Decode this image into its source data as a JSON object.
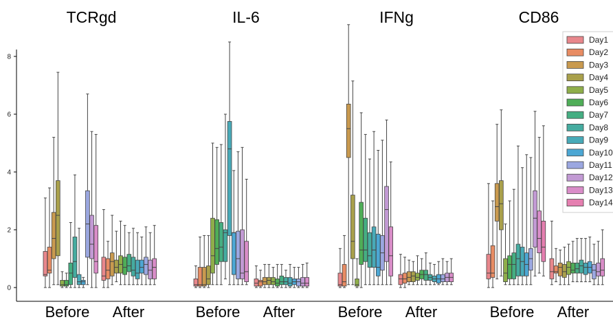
{
  "chart_data": {
    "type": "box",
    "panels": [
      "TCRgd",
      "IL-6",
      "IFNg",
      "CD86"
    ],
    "groups": [
      "Before",
      "After"
    ],
    "y_ticks": [
      0,
      2,
      4,
      6,
      8
    ],
    "ylim": [
      -0.3,
      8.5
    ],
    "legend": {
      "placement": "right",
      "entries": [
        "Day1",
        "Day2",
        "Day3",
        "Day4",
        "Day5",
        "Day6",
        "Day7",
        "Day8",
        "Day9",
        "Day10",
        "Day11",
        "Day12",
        "Day13",
        "Day14"
      ]
    },
    "colors": [
      "#e8878c",
      "#e88c63",
      "#c99a4f",
      "#a9a04b",
      "#8fae4a",
      "#4fae58",
      "#45ae82",
      "#45aca0",
      "#48aab8",
      "#4ca7d4",
      "#9ba7e0",
      "#c29ad4",
      "#d98dc8",
      "#e57fb0"
    ],
    "boxes": [
      {
        "panel": "TCRgd",
        "group": "Before",
        "stats": [
          [
            0,
            0.4,
            0.45,
            1.25,
            3.1
          ],
          [
            0,
            0.5,
            0.6,
            1.4,
            3.45
          ],
          [
            0.1,
            1.0,
            1.7,
            2.6,
            5.2
          ],
          [
            0.1,
            1.1,
            2.5,
            3.7,
            7.45
          ],
          [
            0,
            0.05,
            0.1,
            0.25,
            0.55
          ],
          [
            0,
            0.05,
            0.1,
            0.25,
            0.5
          ],
          [
            0,
            0.1,
            0.5,
            0.85,
            2.25
          ],
          [
            0,
            0.35,
            0.9,
            1.75,
            3.9
          ],
          [
            0,
            0.1,
            0.2,
            0.45,
            2.05
          ],
          [
            0,
            0.1,
            0.2,
            0.25,
            0.35
          ],
          [
            0.1,
            1.05,
            2.2,
            3.35,
            6.7
          ],
          [
            0,
            1.0,
            1.5,
            2.5,
            5.4
          ],
          [
            0,
            0.5,
            0.9,
            2.15,
            5.3
          ],
          [
            0,
            0,
            0,
            0,
            0
          ]
        ]
      },
      {
        "panel": "TCRgd",
        "group": "After",
        "stats": [
          [
            0,
            0.25,
            0.4,
            1.05,
            2.7
          ],
          [
            0,
            0.3,
            0.6,
            1.0,
            1.6
          ],
          [
            0.1,
            0.4,
            0.9,
            1.2,
            2.5
          ],
          [
            0.2,
            0.5,
            0.7,
            0.95,
            1.95
          ],
          [
            0.1,
            0.5,
            0.8,
            1.1,
            2.3
          ],
          [
            0.1,
            0.45,
            0.7,
            1.05,
            2.15
          ],
          [
            0.1,
            0.55,
            0.75,
            1.15,
            1.9
          ],
          [
            0.1,
            0.4,
            0.6,
            1.05,
            2.05
          ],
          [
            0.1,
            0.3,
            0.5,
            0.95,
            1.9
          ],
          [
            0.1,
            0.5,
            0.7,
            0.95,
            1.75
          ],
          [
            0.1,
            0.45,
            0.8,
            1.05,
            2.1
          ],
          [
            0.1,
            0.3,
            0.6,
            0.95,
            1.9
          ],
          [
            0.1,
            0.3,
            0.7,
            1.0,
            2.15
          ],
          [
            0,
            0,
            0,
            0,
            0
          ]
        ]
      },
      {
        "panel": "IL-6",
        "group": "Before",
        "stats": [
          [
            0,
            0.05,
            0.1,
            0.3,
            0.75
          ],
          [
            0,
            0.05,
            0.1,
            0.7,
            1.75
          ],
          [
            0,
            0.05,
            0.1,
            0.7,
            1.8
          ],
          [
            0,
            0.1,
            0.3,
            0.75,
            1.8
          ],
          [
            0.1,
            0.5,
            1.1,
            2.4,
            5.0
          ],
          [
            0.1,
            0.8,
            1.35,
            2.35,
            4.85
          ],
          [
            0.1,
            0.9,
            1.4,
            2.25,
            4.95
          ],
          [
            0.3,
            0.9,
            1.9,
            2.0,
            6.0
          ],
          [
            0.1,
            1.8,
            4.8,
            5.75,
            8.5
          ],
          [
            0.1,
            0.45,
            1.9,
            1.9,
            4.05
          ],
          [
            0.1,
            0.3,
            1.0,
            1.95,
            4.7
          ],
          [
            0.1,
            0.3,
            0.5,
            2.0,
            4.85
          ],
          [
            0.1,
            0.2,
            0.55,
            1.6,
            3.75
          ],
          [
            0,
            0,
            0,
            0,
            0
          ]
        ]
      },
      {
        "panel": "IL-6",
        "group": "After",
        "stats": [
          [
            0,
            0.05,
            0.15,
            0.3,
            0.75
          ],
          [
            0,
            0.05,
            0.2,
            0.25,
            0.6
          ],
          [
            0,
            0.1,
            0.2,
            0.35,
            0.8
          ],
          [
            0,
            0.1,
            0.25,
            0.35,
            0.8
          ],
          [
            0,
            0.1,
            0.2,
            0.35,
            0.7
          ],
          [
            0,
            0.05,
            0.15,
            0.3,
            0.8
          ],
          [
            0,
            0.1,
            0.2,
            0.4,
            0.8
          ],
          [
            0,
            0.1,
            0.2,
            0.35,
            0.6
          ],
          [
            0,
            0.05,
            0.15,
            0.35,
            0.8
          ],
          [
            0,
            0.1,
            0.2,
            0.3,
            0.7
          ],
          [
            0,
            0.05,
            0.2,
            0.3,
            0.7
          ],
          [
            0,
            0.05,
            0.15,
            0.35,
            0.8
          ],
          [
            0,
            0.05,
            0.15,
            0.35,
            0.85
          ],
          [
            0,
            0,
            0,
            0,
            0
          ]
        ]
      },
      {
        "panel": "IFNg",
        "group": "Before",
        "stats": [
          [
            0,
            0.05,
            0.1,
            0.5,
            1.35
          ],
          [
            0,
            0.05,
            0.2,
            0.8,
            1.8
          ],
          [
            0.1,
            4.5,
            5.5,
            6.35,
            9.1
          ],
          [
            0.1,
            1.0,
            1.6,
            3.2,
            7.15
          ],
          [
            0,
            0.05,
            0.1,
            0.3,
            1.0
          ],
          [
            0,
            0.8,
            1.3,
            2.95,
            6.05
          ],
          [
            0.1,
            0.9,
            1.3,
            2.4,
            5.3
          ],
          [
            0.1,
            0.7,
            1.1,
            1.9,
            4.45
          ],
          [
            0.1,
            0.7,
            1.3,
            2.1,
            5.4
          ],
          [
            0.1,
            0.4,
            0.7,
            1.85,
            4.75
          ],
          [
            0.1,
            0.6,
            1.2,
            1.8,
            5.1
          ],
          [
            0.1,
            0.9,
            2.7,
            3.5,
            5.8
          ],
          [
            0.1,
            0.4,
            1.1,
            2.1,
            4.35
          ],
          [
            0,
            0,
            0,
            0,
            0
          ]
        ]
      },
      {
        "panel": "IFNg",
        "group": "After",
        "stats": [
          [
            0,
            0.1,
            0.3,
            0.45,
            1.15
          ],
          [
            0,
            0.15,
            0.3,
            0.5,
            1.05
          ],
          [
            0.1,
            0.2,
            0.35,
            0.55,
            0.95
          ],
          [
            0.1,
            0.2,
            0.4,
            0.55,
            0.9
          ],
          [
            0.1,
            0.25,
            0.35,
            0.5,
            1.1
          ],
          [
            0.1,
            0.3,
            0.45,
            0.6,
            1.0
          ],
          [
            0.1,
            0.25,
            0.45,
            0.6,
            1.2
          ],
          [
            0.1,
            0.25,
            0.35,
            0.45,
            0.85
          ],
          [
            0.1,
            0.2,
            0.3,
            0.4,
            0.8
          ],
          [
            0.1,
            0.15,
            0.3,
            0.45,
            0.9
          ],
          [
            0.1,
            0.2,
            0.3,
            0.45,
            1.0
          ],
          [
            0.1,
            0.2,
            0.35,
            0.5,
            0.9
          ],
          [
            0.1,
            0.2,
            0.35,
            0.5,
            1.0
          ],
          [
            0,
            0,
            0,
            0,
            0
          ]
        ]
      },
      {
        "panel": "CD86",
        "group": "Before",
        "stats": [
          [
            0,
            0.3,
            0.5,
            1.15,
            3.6
          ],
          [
            0,
            0.35,
            0.5,
            1.45,
            3.0
          ],
          [
            0.3,
            2.3,
            2.8,
            3.6,
            5.65
          ],
          [
            0.4,
            2.0,
            2.9,
            3.7,
            6.15
          ],
          [
            0.1,
            0.2,
            0.5,
            1.0,
            2.2
          ],
          [
            0.1,
            0.3,
            0.8,
            1.1,
            3.0
          ],
          [
            0.1,
            0.3,
            0.8,
            1.2,
            3.4
          ],
          [
            0.1,
            0.4,
            1.0,
            1.5,
            4.9
          ],
          [
            0.1,
            0.4,
            0.9,
            1.4,
            4.15
          ],
          [
            0.1,
            0.4,
            0.8,
            1.2,
            4.6
          ],
          [
            0.1,
            0.6,
            1.0,
            1.35,
            4.5
          ],
          [
            0.4,
            1.4,
            2.4,
            3.35,
            6.1
          ],
          [
            0.5,
            1.2,
            1.7,
            2.65,
            5.2
          ],
          [
            0.4,
            0.9,
            1.4,
            2.3,
            5.6
          ]
        ]
      },
      {
        "panel": "CD86",
        "group": "After",
        "stats": [
          [
            0.1,
            0.3,
            0.55,
            1.0,
            2.3
          ],
          [
            0.2,
            0.5,
            0.55,
            0.75,
            1.35
          ],
          [
            0.1,
            0.4,
            0.7,
            0.85,
            1.3
          ],
          [
            0.1,
            0.35,
            0.55,
            0.8,
            1.4
          ],
          [
            0.1,
            0.45,
            0.7,
            0.9,
            1.5
          ],
          [
            0.2,
            0.5,
            0.6,
            0.85,
            1.6
          ],
          [
            0.2,
            0.5,
            0.65,
            0.85,
            1.7
          ],
          [
            0.2,
            0.5,
            0.75,
            0.95,
            1.7
          ],
          [
            0.2,
            0.45,
            0.7,
            0.85,
            1.7
          ],
          [
            0.2,
            0.5,
            0.7,
            0.9,
            1.75
          ],
          [
            0.1,
            0.3,
            0.6,
            0.8,
            1.5
          ],
          [
            0.1,
            0.4,
            0.55,
            0.85,
            1.6
          ],
          [
            0.1,
            0.4,
            0.6,
            1.0,
            2.0
          ],
          [
            0,
            0,
            0,
            0,
            0
          ]
        ]
      }
    ]
  }
}
